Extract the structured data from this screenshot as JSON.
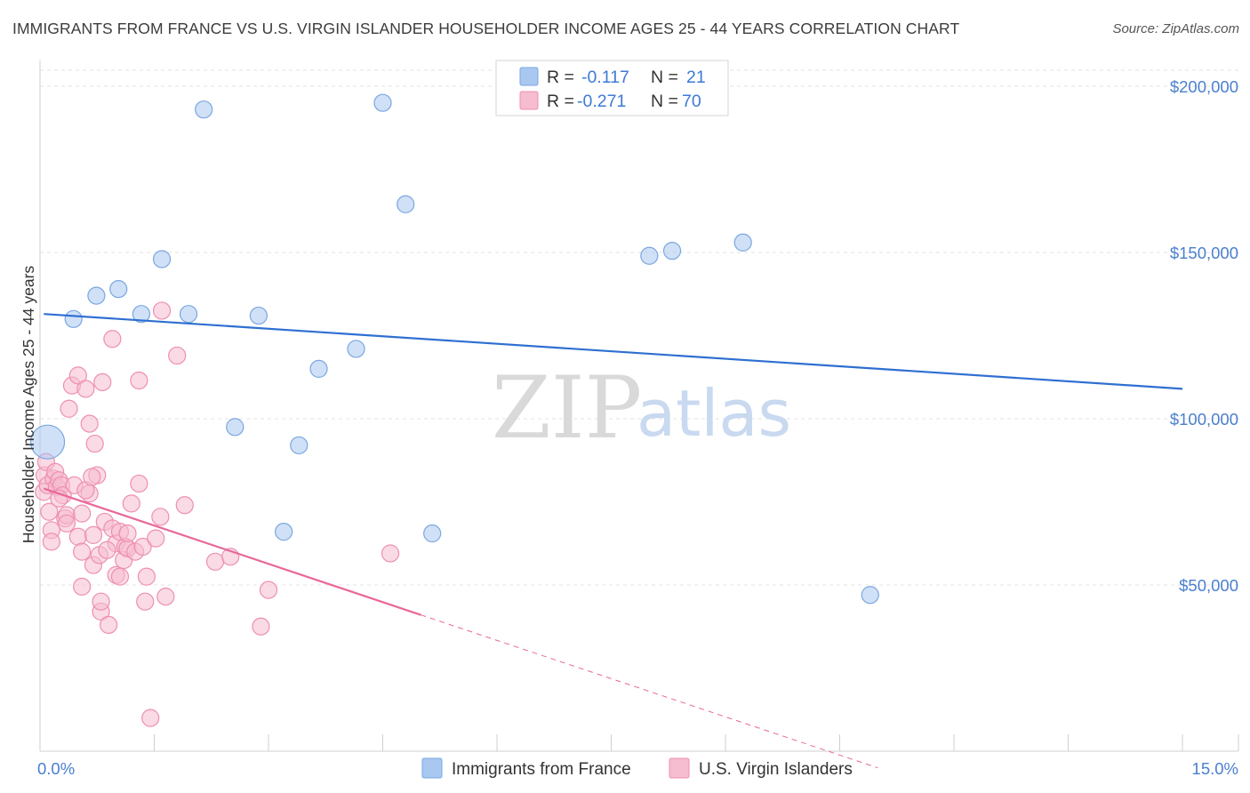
{
  "title": "IMMIGRANTS FROM FRANCE VS U.S. VIRGIN ISLANDER HOUSEHOLDER INCOME AGES 25 - 44 YEARS CORRELATION CHART",
  "source": "Source: ZipAtlas.com",
  "watermark": {
    "zip": "ZIP",
    "atlas": "atlas"
  },
  "legend": {
    "rows": [
      {
        "r_label": "R =",
        "r_value": "-0.117",
        "n_label": "N =",
        "n_value": "21",
        "color": "#a9c8f0",
        "stroke": "#7aa6e0"
      },
      {
        "r_label": "R =",
        "r_value": "-0.271",
        "n_label": "N =",
        "n_value": "70",
        "color": "#f6bcd0",
        "stroke": "#ee8fb0"
      }
    ]
  },
  "bottom_legend": [
    {
      "label": "Immigrants from France",
      "color": "#a9c8f0",
      "stroke": "#7aa6e0"
    },
    {
      "label": "U.S. Virgin Islanders",
      "color": "#f6bcd0",
      "stroke": "#ee8fb0"
    }
  ],
  "chart_data": {
    "type": "scatter",
    "title": "IMMIGRANTS FROM FRANCE VS U.S. VIRGIN ISLANDER HOUSEHOLDER INCOME AGES 25 - 44 YEARS CORRELATION CHART",
    "xlabel": "",
    "ylabel": "Householder Income Ages 25 - 44 years",
    "xlim": [
      0,
      15
    ],
    "ylim": [
      0,
      210000
    ],
    "x_tick_labels": [
      {
        "value": 0,
        "label": "0.0%"
      },
      {
        "value": 15,
        "label": "15.0%"
      }
    ],
    "y_tick_labels": [
      {
        "value": 50000,
        "label": "$50,000"
      },
      {
        "value": 100000,
        "label": "$100,000"
      },
      {
        "value": 150000,
        "label": "$150,000"
      },
      {
        "value": 200000,
        "label": "$200,000"
      }
    ],
    "grid": true,
    "legend_position": "top-center",
    "series": [
      {
        "name": "Immigrants from France",
        "color": "#a9c8f0",
        "stroke": "#7aa6e0",
        "trend_color": "#2f6fd1",
        "trend": {
          "x0": 0.05,
          "y0": 131500,
          "x1": 15,
          "y1": 109000
        },
        "points": [
          [
            0.1,
            93000,
            3
          ],
          [
            0.44,
            130000,
            1
          ],
          [
            0.74,
            137000,
            1
          ],
          [
            1.03,
            139000,
            1
          ],
          [
            1.33,
            131500,
            1
          ],
          [
            1.6,
            148000,
            1
          ],
          [
            2.15,
            193000,
            1
          ],
          [
            1.95,
            131500,
            1
          ],
          [
            2.56,
            97500,
            1
          ],
          [
            2.87,
            131000,
            1
          ],
          [
            3.4,
            92000,
            1
          ],
          [
            3.2,
            66000,
            1
          ],
          [
            3.66,
            115000,
            1
          ],
          [
            4.15,
            121000,
            1
          ],
          [
            4.5,
            195000,
            1
          ],
          [
            4.8,
            164500,
            1
          ],
          [
            5.15,
            65500,
            1
          ],
          [
            8.0,
            149000,
            1
          ],
          [
            8.3,
            150500,
            1
          ],
          [
            9.23,
            153000,
            1
          ],
          [
            10.9,
            47000,
            1
          ]
        ]
      },
      {
        "name": "U.S. Virgin Islanders",
        "color": "#f6bcd0",
        "stroke": "#ee8fb0",
        "trend_color": "#e8689a",
        "trend": {
          "x0": 0.05,
          "y0": 79000,
          "x1": 5.0,
          "y1": 41000
        },
        "trend_dashed": {
          "x0": 5.0,
          "y0": 41000,
          "x1": 11.0,
          "y1": -5000
        },
        "points": [
          [
            0.05,
            78000,
            1
          ],
          [
            0.06,
            83000,
            1
          ],
          [
            0.08,
            87000,
            1
          ],
          [
            0.1,
            80000,
            1
          ],
          [
            0.12,
            72000,
            1
          ],
          [
            0.15,
            66500,
            1
          ],
          [
            0.18,
            82000,
            1
          ],
          [
            0.2,
            84000,
            1
          ],
          [
            0.22,
            79500,
            1
          ],
          [
            0.25,
            81500,
            1
          ],
          [
            0.28,
            80000,
            1
          ],
          [
            0.3,
            77000,
            1
          ],
          [
            0.33,
            70000,
            1
          ],
          [
            0.35,
            71000,
            1
          ],
          [
            0.38,
            103000,
            1
          ],
          [
            0.42,
            110000,
            1
          ],
          [
            0.5,
            64500,
            1
          ],
          [
            0.5,
            113000,
            1
          ],
          [
            0.55,
            60000,
            1
          ],
          [
            0.55,
            49500,
            1
          ],
          [
            0.6,
            109000,
            1
          ],
          [
            0.65,
            77500,
            1
          ],
          [
            0.65,
            98500,
            1
          ],
          [
            0.7,
            65000,
            1
          ],
          [
            0.7,
            56000,
            1
          ],
          [
            0.72,
            92500,
            1
          ],
          [
            0.75,
            83000,
            1
          ],
          [
            0.8,
            42000,
            1
          ],
          [
            0.8,
            45000,
            1
          ],
          [
            0.82,
            111000,
            1
          ],
          [
            0.85,
            69000,
            1
          ],
          [
            0.9,
            38000,
            1
          ],
          [
            0.95,
            124000,
            1
          ],
          [
            0.95,
            67000,
            1
          ],
          [
            1.0,
            62500,
            1
          ],
          [
            1.0,
            53000,
            1
          ],
          [
            1.05,
            66000,
            1
          ],
          [
            1.05,
            52500,
            1
          ],
          [
            1.1,
            57500,
            1
          ],
          [
            1.12,
            61500,
            1
          ],
          [
            1.15,
            61000,
            1
          ],
          [
            1.2,
            74500,
            1
          ],
          [
            1.25,
            60000,
            1
          ],
          [
            1.3,
            80500,
            1
          ],
          [
            1.3,
            111500,
            1
          ],
          [
            1.35,
            61500,
            1
          ],
          [
            1.38,
            45000,
            1
          ],
          [
            1.4,
            52500,
            1
          ],
          [
            1.45,
            10000,
            1
          ],
          [
            1.52,
            64000,
            1
          ],
          [
            1.58,
            70500,
            1
          ],
          [
            1.6,
            132500,
            1
          ],
          [
            1.65,
            46500,
            1
          ],
          [
            1.8,
            119000,
            1
          ],
          [
            1.9,
            74000,
            1
          ],
          [
            2.3,
            57000,
            1
          ],
          [
            2.5,
            58500,
            1
          ],
          [
            2.9,
            37500,
            1
          ],
          [
            3.0,
            48500,
            1
          ],
          [
            4.6,
            59500,
            1
          ],
          [
            0.15,
            63000,
            1
          ],
          [
            0.25,
            76000,
            1
          ],
          [
            0.35,
            68500,
            1
          ],
          [
            0.45,
            80000,
            1
          ],
          [
            0.55,
            71500,
            1
          ],
          [
            0.6,
            78500,
            1
          ],
          [
            0.68,
            82500,
            1
          ],
          [
            0.78,
            59000,
            1
          ],
          [
            0.88,
            60500,
            1
          ],
          [
            1.15,
            65500,
            1
          ]
        ]
      }
    ]
  },
  "colors": {
    "tick_label": "#4a7fcf",
    "grid": "#e3e3e3",
    "axis": "#cfcfcf"
  }
}
